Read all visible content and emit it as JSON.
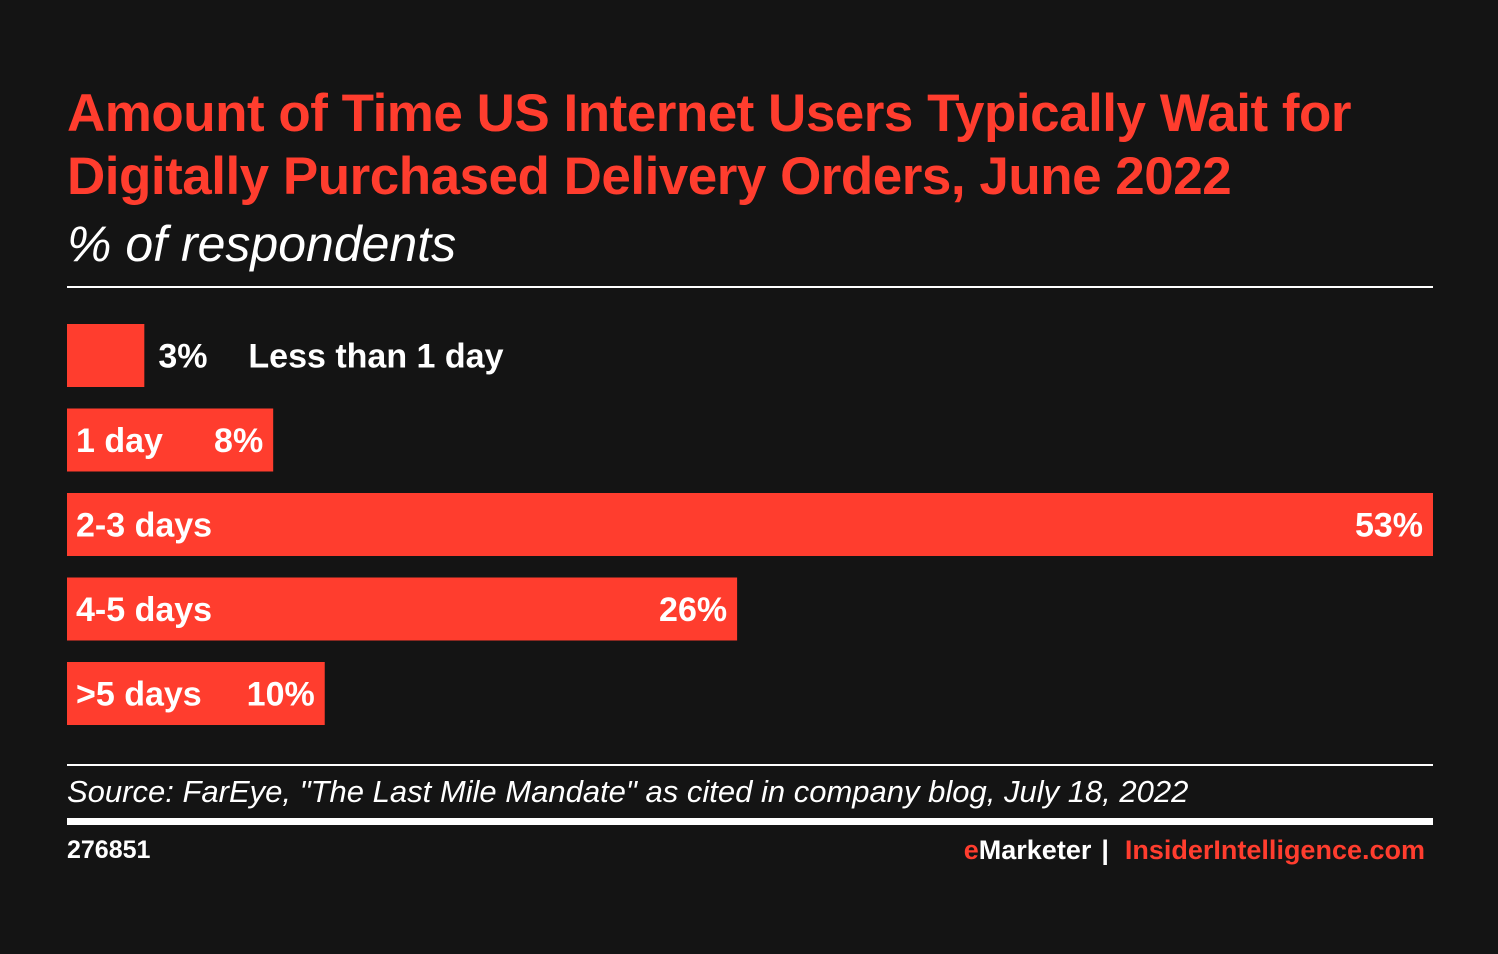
{
  "title": "Amount of Time US Internet Users Typically Wait for Digitally Purchased Delivery Orders, June 2022",
  "subtitle": "% of respondents",
  "chart_data": {
    "type": "bar",
    "orientation": "horizontal",
    "title": "Amount of Time US Internet Users Typically Wait for Digitally Purchased Delivery Orders, June 2022",
    "subtitle": "% of respondents",
    "categories": [
      "Less than 1 day",
      "1 day",
      "2-3 days",
      "4-5 days",
      ">5 days"
    ],
    "values": [
      3,
      8,
      53,
      26,
      10
    ],
    "value_labels": [
      "3%",
      "8%",
      "53%",
      "26%",
      "10%"
    ],
    "unit": "%",
    "xlim": [
      0,
      53
    ],
    "bar_color": "#ff3d2e",
    "grid": false,
    "legend": "none"
  },
  "footer": {
    "source": "Source: FarEye, \"The Last Mile Mandate\" as cited in company blog, July 18, 2022",
    "chart_id": "276851",
    "brand_e": "e",
    "brand_marketer": "Marketer",
    "brand_separator": "|",
    "brand_site": "InsiderIntelligence.com"
  },
  "colors": {
    "background": "#141414",
    "accent": "#ff3d2e",
    "text": "#ffffff"
  }
}
